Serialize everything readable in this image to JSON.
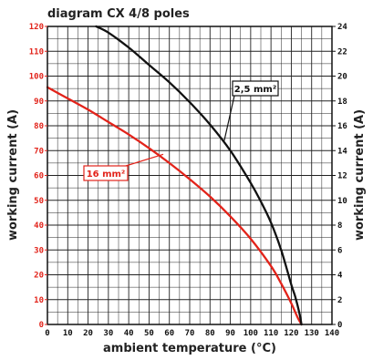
{
  "chart_data": {
    "type": "line",
    "title": "diagram CX 4/8 poles",
    "xlabel": "ambient temperature (°C)",
    "ylabel_left": "working current (A)",
    "ylabel_right": "working current (A)",
    "xlim": [
      0,
      140
    ],
    "ylim_left": [
      0,
      120
    ],
    "ylim_right": [
      0,
      24
    ],
    "grid": true,
    "x_ticks": [
      "0",
      "10",
      "20",
      "30",
      "40",
      "50",
      "60",
      "70",
      "80",
      "90",
      "100",
      "110",
      "120",
      "130",
      "140"
    ],
    "y_left_ticks": [
      "0",
      "10",
      "20",
      "30",
      "40",
      "50",
      "60",
      "70",
      "80",
      "90",
      "100",
      "110",
      "120"
    ],
    "y_right_ticks": [
      "0",
      "2",
      "4",
      "6",
      "8",
      "10",
      "12",
      "14",
      "16",
      "18",
      "20",
      "22",
      "24"
    ],
    "colors": {
      "left_axis": "#e2231a",
      "right_axis": "#111111",
      "grid": "#222222"
    },
    "series": [
      {
        "name": "16 mm²",
        "axis": "left",
        "color": "#e2231a",
        "x": [
          0,
          10,
          20,
          30,
          40,
          50,
          60,
          70,
          80,
          90,
          100,
          110,
          115,
          120,
          123,
          125
        ],
        "y": [
          95.5,
          91,
          86.5,
          81.5,
          76.5,
          71,
          65,
          58.5,
          51.5,
          43.5,
          34.5,
          23.5,
          16.5,
          8.5,
          3,
          0
        ]
      },
      {
        "name": "2,5 mm²",
        "axis": "right",
        "color": "#111111",
        "x": [
          24,
          30,
          40,
          50,
          60,
          70,
          80,
          90,
          100,
          105,
          110,
          115,
          120,
          122,
          124,
          125
        ],
        "y": [
          24,
          23.5,
          22.3,
          20.9,
          19.5,
          17.9,
          16.1,
          14,
          11.4,
          9.9,
          8.2,
          6,
          3.2,
          2.2,
          0.9,
          0
        ]
      }
    ],
    "annotations": [
      {
        "text": "2,5 mm²",
        "series": "2,5 mm²"
      },
      {
        "text": "16 mm²",
        "series": "16 mm²"
      }
    ]
  }
}
